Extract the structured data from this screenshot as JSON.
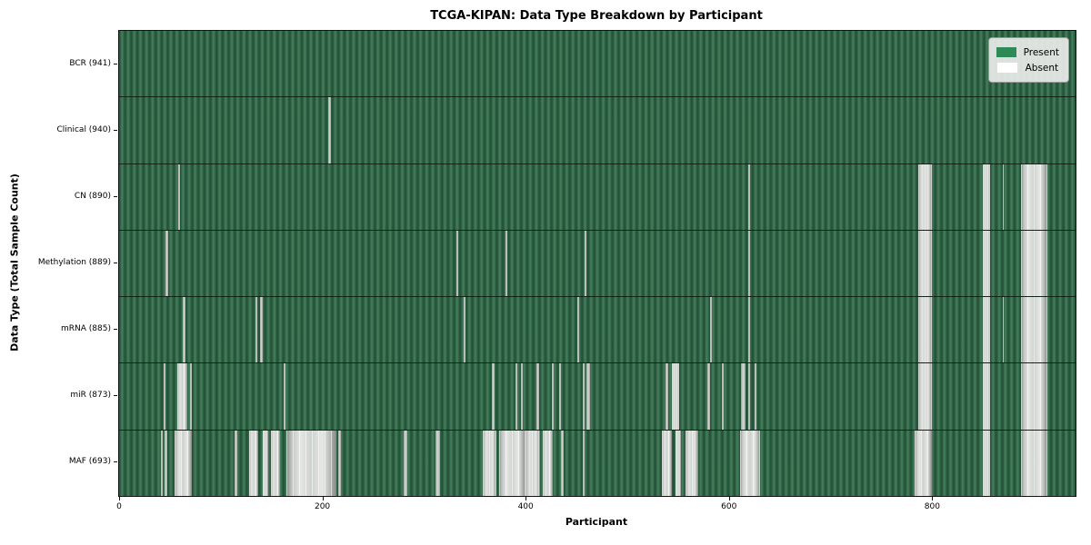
{
  "chart_data": {
    "type": "heatmap",
    "title": "TCGA-KIPAN: Data Type Breakdown by Participant",
    "xlabel": "Participant",
    "ylabel": "Data Type (Total Sample Count)",
    "x_max": 941,
    "x_ticks": [
      0,
      200,
      400,
      600,
      800
    ],
    "grid": false,
    "legend_position": "upper right",
    "legend": [
      {
        "label": "Present",
        "color": "#2e8b57"
      },
      {
        "label": "Absent",
        "color": "#ffffff"
      }
    ],
    "rows": [
      {
        "label": "BCR (941)",
        "count": 941,
        "absent": []
      },
      {
        "label": "Clinical (940)",
        "count": 940,
        "absent": [
          [
            206,
            208
          ]
        ]
      },
      {
        "label": "CN (890)",
        "count": 890,
        "absent": [
          [
            58,
            60
          ],
          [
            619,
            621
          ],
          [
            786,
            800
          ],
          [
            850,
            857
          ],
          [
            869,
            870
          ],
          [
            887,
            913
          ]
        ]
      },
      {
        "label": "Methylation (889)",
        "count": 889,
        "absent": [
          [
            46,
            48
          ],
          [
            332,
            334
          ],
          [
            380,
            382
          ],
          [
            458,
            460
          ],
          [
            619,
            621
          ],
          [
            786,
            800
          ],
          [
            850,
            857
          ],
          [
            887,
            913
          ]
        ]
      },
      {
        "label": "mRNA (885)",
        "count": 885,
        "absent": [
          [
            63,
            65
          ],
          [
            134,
            136
          ],
          [
            139,
            141
          ],
          [
            339,
            341
          ],
          [
            451,
            453
          ],
          [
            581,
            583
          ],
          [
            619,
            621
          ],
          [
            786,
            800
          ],
          [
            850,
            857
          ],
          [
            869,
            870
          ],
          [
            887,
            913
          ]
        ]
      },
      {
        "label": "miR (873)",
        "count": 873,
        "absent": [
          [
            44,
            46
          ],
          [
            57,
            67
          ],
          [
            70,
            72
          ],
          [
            162,
            164
          ],
          [
            367,
            369
          ],
          [
            390,
            392
          ],
          [
            395,
            397
          ],
          [
            411,
            413
          ],
          [
            426,
            428
          ],
          [
            433,
            435
          ],
          [
            456,
            458
          ],
          [
            460,
            463
          ],
          [
            538,
            540
          ],
          [
            544,
            551
          ],
          [
            579,
            581
          ],
          [
            593,
            595
          ],
          [
            612,
            616
          ],
          [
            619,
            621
          ],
          [
            625,
            627
          ],
          [
            786,
            800
          ],
          [
            850,
            857
          ],
          [
            887,
            913
          ]
        ]
      },
      {
        "label": "MAF (693)",
        "count": 693,
        "absent": [
          [
            41,
            43
          ],
          [
            45,
            47
          ],
          [
            55,
            72
          ],
          [
            114,
            116
          ],
          [
            128,
            137
          ],
          [
            141,
            147
          ],
          [
            149,
            158
          ],
          [
            165,
            214
          ],
          [
            216,
            218
          ],
          [
            280,
            284
          ],
          [
            311,
            316
          ],
          [
            358,
            371
          ],
          [
            374,
            400
          ],
          [
            400,
            414
          ],
          [
            417,
            427
          ],
          [
            435,
            437
          ],
          [
            456,
            458
          ],
          [
            534,
            544
          ],
          [
            547,
            553
          ],
          [
            557,
            570
          ],
          [
            611,
            631
          ],
          [
            783,
            800
          ],
          [
            850,
            857
          ],
          [
            887,
            913
          ]
        ]
      }
    ]
  }
}
